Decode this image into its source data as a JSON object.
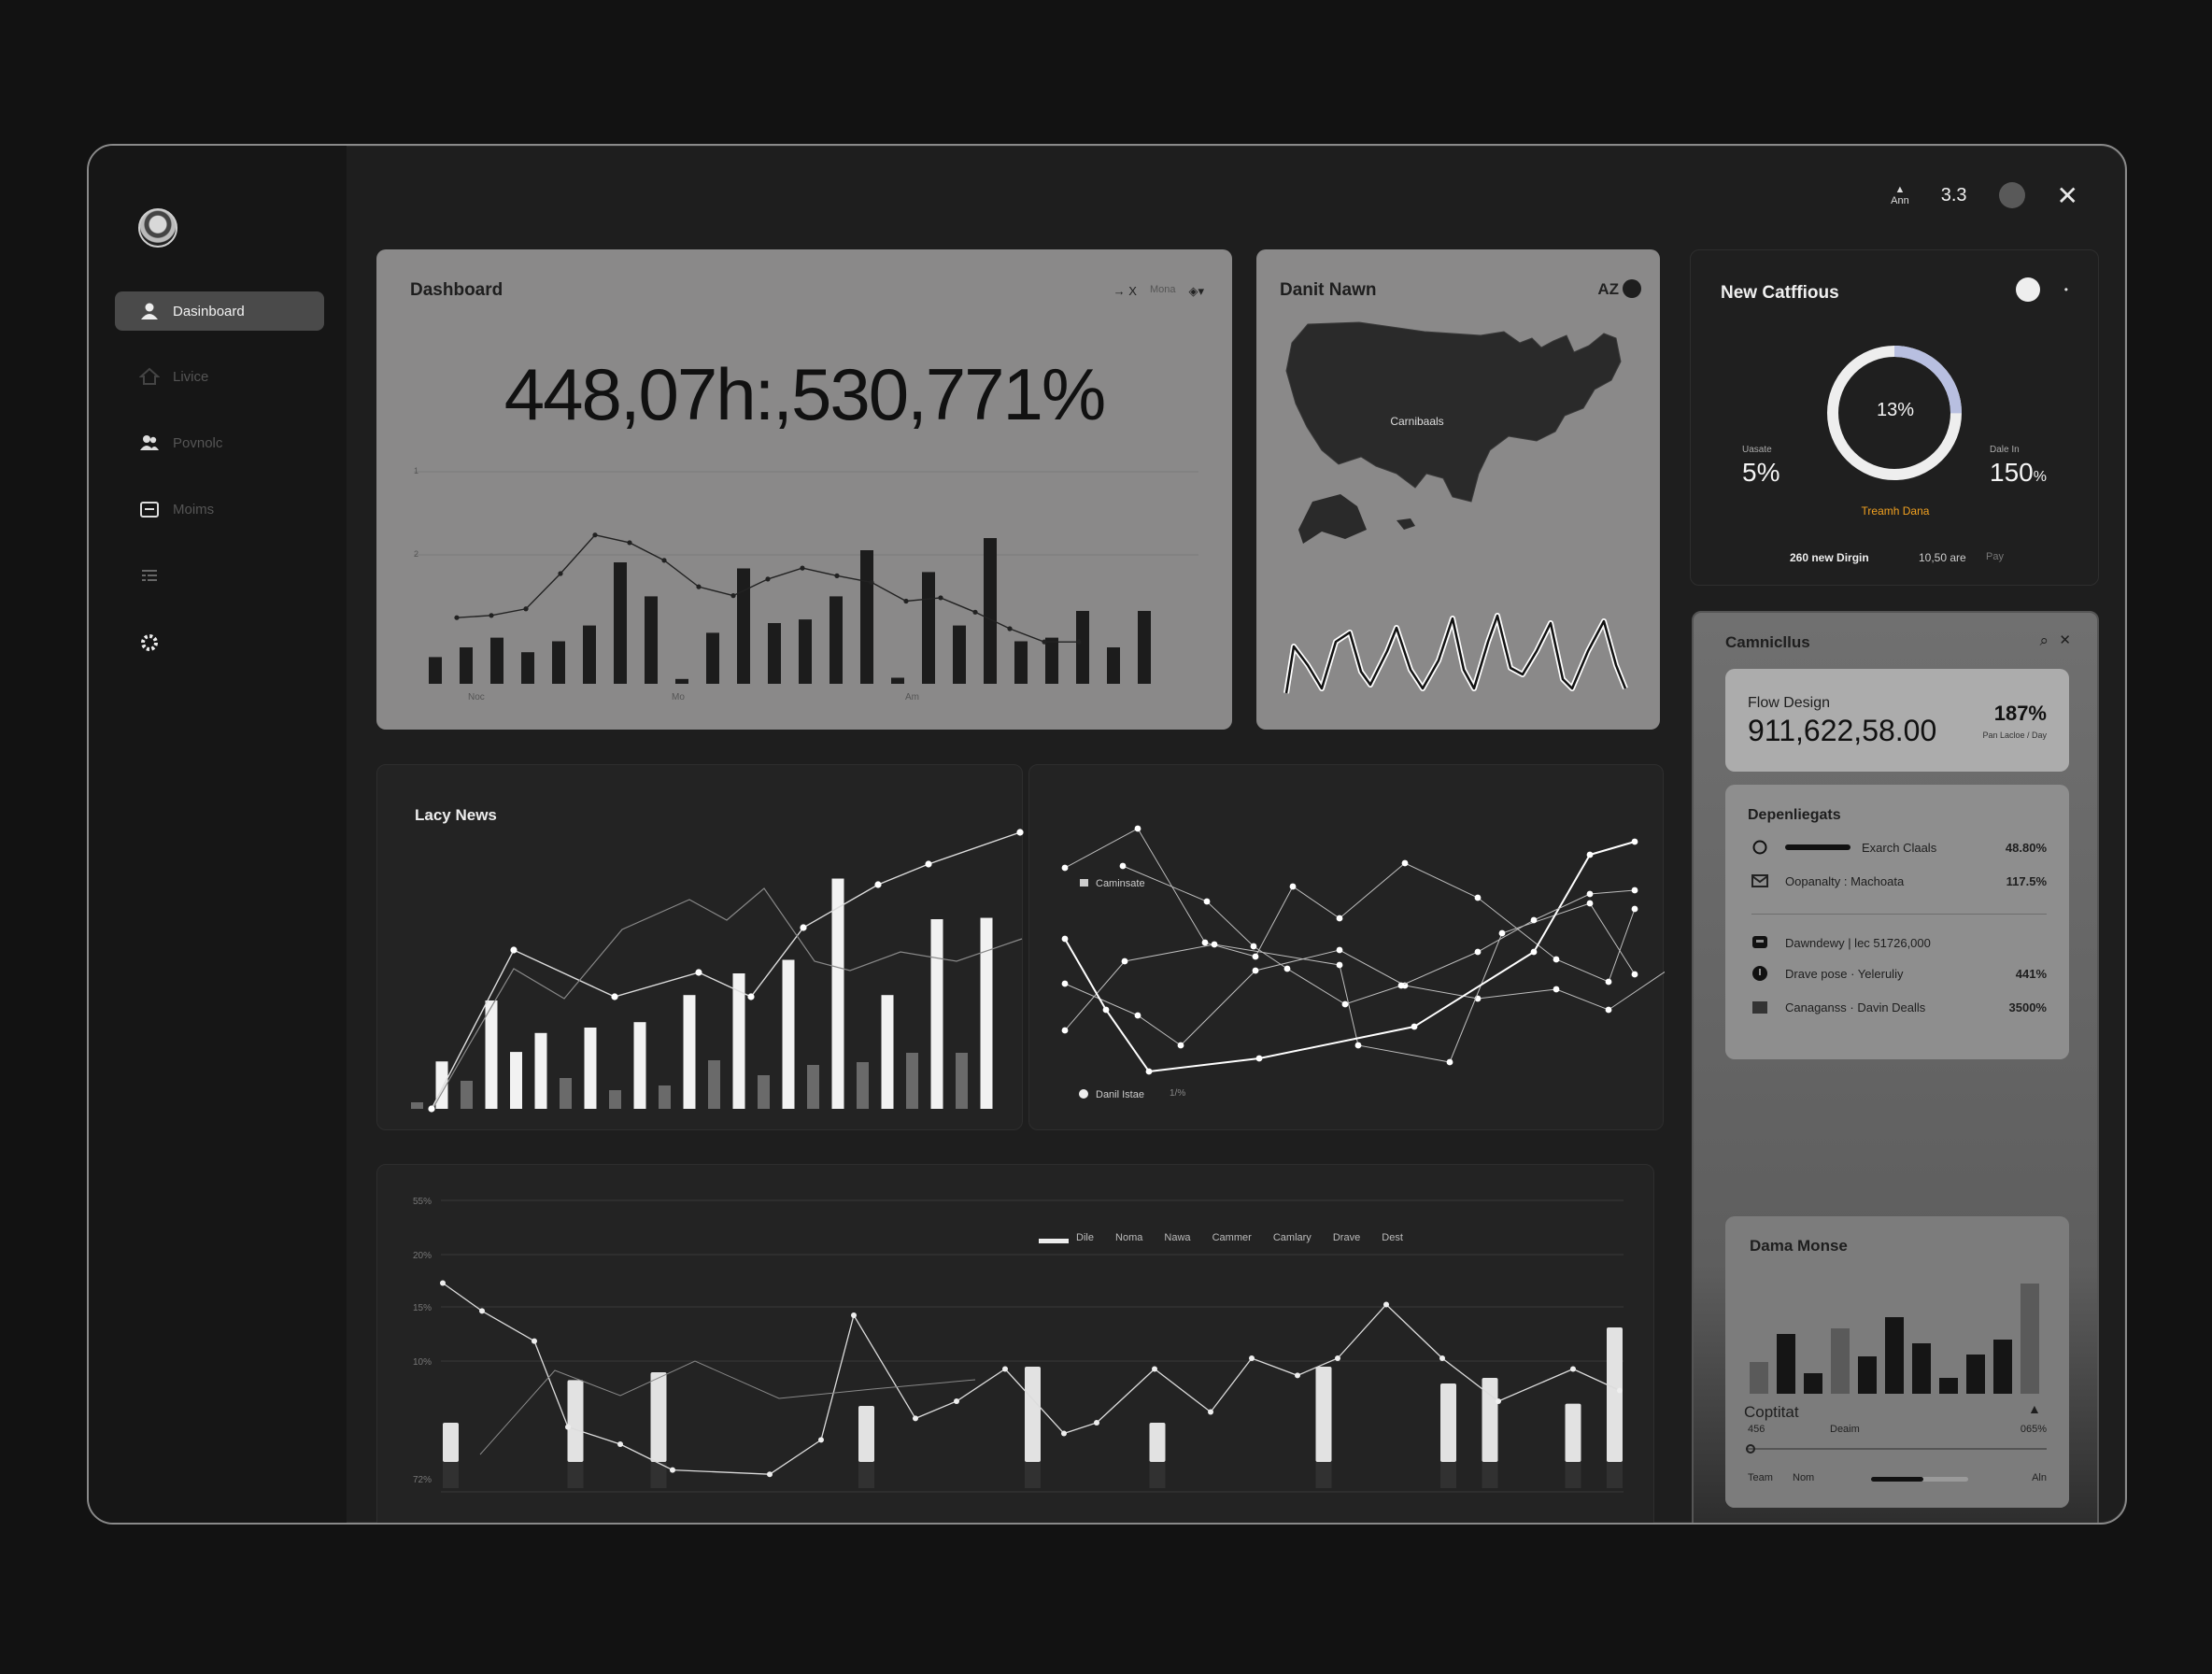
{
  "sidebar": {
    "items": [
      {
        "label": "Dasinboard",
        "icon": "user-icon",
        "active": true
      },
      {
        "label": "Livice",
        "icon": "home-icon"
      },
      {
        "label": "Povnolc",
        "icon": "users-icon"
      },
      {
        "label": "Moims",
        "icon": "calendar-icon"
      },
      {
        "label": "",
        "icon": "list-icon"
      },
      {
        "label": "",
        "icon": "gear-icon"
      }
    ]
  },
  "topbar": {
    "user_label": "Ann",
    "count": "3.3",
    "close": "✕"
  },
  "dashboard_card": {
    "title": "Dashboard",
    "controls": [
      "→ X",
      "Mona",
      "◈▾"
    ],
    "big_value": "448,07h:,530,771%",
    "y_ticks": [
      "1",
      "2"
    ],
    "x_ticks": [
      "Noc",
      "Mo",
      "Am"
    ]
  },
  "map_card": {
    "title": "Danit Nawn",
    "badge": "AZ",
    "map_label": "Carnibaals"
  },
  "donut_card": {
    "title": "New Catffious",
    "center": "13%",
    "left_label": "Uasate",
    "left_value": "5%",
    "right_label": "Dale In",
    "right_value": "150",
    "right_unit": "%",
    "accent_label": "Treamh Dana",
    "footer_a": "260 new Dirgin",
    "footer_b": "10,50 are",
    "footer_c": "Pay",
    "accent_color": "#f0a020",
    "ring_color": "#b8bfe0"
  },
  "lacy_card": {
    "title": "Lacy News"
  },
  "line_card": {
    "legend_a": "Caminsate",
    "legend_b": "Danil Istae",
    "legend_c": "1/%"
  },
  "bottom_card": {
    "y_ticks": [
      "55%",
      "20%",
      "15%",
      "10%",
      "72%"
    ],
    "legend": [
      "Dile",
      "Noma",
      "Nawa",
      "Cammer",
      "Camlary",
      "Drave",
      "Dest"
    ]
  },
  "right_panel": {
    "title": "Camnicllus",
    "flow": {
      "label": "Flow Design",
      "value": "911,622,58.00",
      "pct": "187%",
      "sub": "Pan Lacloe / Day"
    },
    "dependencies": {
      "title": "Depenliegats",
      "rows": [
        {
          "icon": "circle-icon",
          "label": "Exarch Claals",
          "value": "48.80%"
        },
        {
          "icon": "mail-icon",
          "label": "Oopanalty : Machoata",
          "value": "117.5%"
        },
        {
          "icon": "chat-icon",
          "label": "Dawndewy | lec 51726,000",
          "value": ""
        },
        {
          "icon": "alert-icon",
          "label": "Drave pose · Yeleruliy",
          "value": "441%"
        },
        {
          "icon": "folder-icon",
          "label": "Canaganss · Davin Dealls",
          "value": "3500%"
        }
      ]
    },
    "dama": {
      "title": "Dama Monse",
      "stat_a": "456",
      "stat_b": "Deaim",
      "stat_c": "065%",
      "foot_a": "Team",
      "foot_b": "Nom",
      "foot_c": "Aln"
    },
    "captital": {
      "title": "Coptitat"
    }
  },
  "chart_data": [
    {
      "type": "bar",
      "title": "Dashboard",
      "values": [
        22,
        30,
        38,
        26,
        35,
        48,
        100,
        72,
        4,
        42,
        95,
        50,
        53,
        72,
        110,
        5,
        92,
        48,
        120,
        35,
        38,
        60,
        30,
        60
      ],
      "line": [
        60,
        62,
        68,
        100,
        135,
        128,
        112,
        88,
        80,
        95,
        105,
        98,
        92,
        75,
        78,
        65,
        50,
        38,
        38
      ]
    },
    {
      "type": "bar",
      "title": "Lacy News",
      "series": [
        {
          "name": "white",
          "values": [
            0,
            35,
            0,
            80,
            42,
            56,
            0,
            60,
            0,
            64,
            0,
            84,
            0,
            100,
            0,
            110,
            0,
            170,
            0,
            84,
            0,
            140,
            0,
            141
          ]
        },
        {
          "name": "gray",
          "values": [
            7,
            0,
            30,
            0,
            0,
            0,
            33,
            0,
            20,
            0,
            25,
            0,
            52,
            0,
            36,
            0,
            47,
            0,
            50,
            0,
            60,
            0,
            60,
            0
          ]
        }
      ]
    },
    {
      "type": "line",
      "series": [
        {
          "name": "Caminsate",
          "values": [
            45,
            50,
            60,
            35,
            20,
            30,
            42,
            25,
            50,
            38,
            30,
            45
          ]
        },
        {
          "name": "Danil Istae",
          "values": [
            30,
            28,
            25,
            40,
            50,
            55,
            40,
            35,
            38,
            45,
            60,
            62
          ]
        }
      ]
    },
    {
      "type": "bar",
      "values": [
        35,
        0,
        0,
        73,
        0,
        80,
        0,
        0,
        0,
        0,
        50,
        0,
        0,
        0,
        85,
        0,
        0,
        35,
        0,
        0,
        0,
        85,
        0,
        0,
        70,
        75,
        0,
        52,
        120
      ],
      "line": [
        95,
        82,
        68,
        28,
        20,
        8,
        6,
        22,
        80,
        32,
        40,
        55,
        25,
        30,
        55,
        35,
        60,
        52,
        60,
        85,
        60,
        40,
        55,
        45
      ]
    }
  ]
}
